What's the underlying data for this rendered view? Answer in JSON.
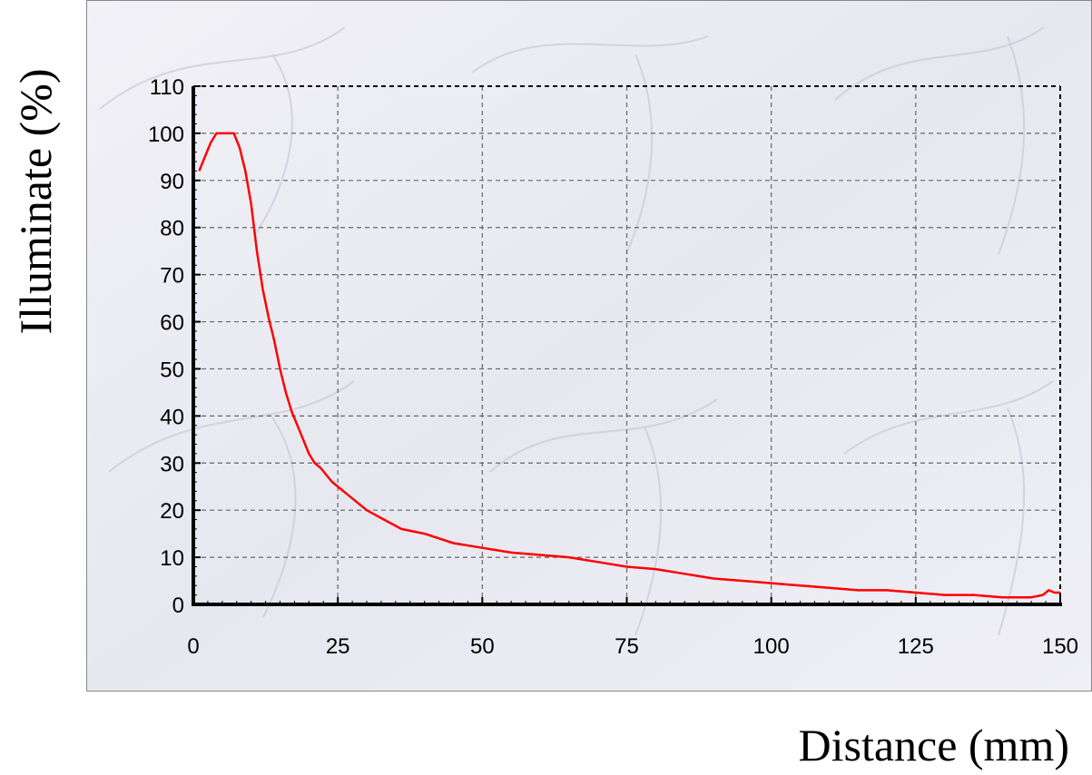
{
  "chart_data": {
    "type": "line",
    "xlabel": "Distance (mm)",
    "ylabel": "Illuminate (%)",
    "xlim": [
      0,
      150
    ],
    "ylim": [
      0,
      110
    ],
    "x_ticks": [
      0,
      25,
      50,
      75,
      100,
      125,
      150
    ],
    "y_ticks": [
      0,
      10,
      20,
      30,
      40,
      50,
      60,
      70,
      80,
      90,
      100,
      110
    ],
    "grid": true,
    "legend": "none",
    "colors": {
      "line": "#ff0000",
      "plot_background": "#e9e9f2",
      "grid": "#666666",
      "axis": "#000000"
    },
    "series": [
      {
        "x": [
          1,
          2,
          3,
          4,
          5,
          6,
          7,
          8,
          9,
          10,
          11,
          12,
          13,
          14,
          15,
          16,
          17,
          18,
          19,
          20,
          21,
          22,
          24,
          26,
          28,
          30,
          33,
          36,
          40,
          45,
          50,
          55,
          60,
          65,
          70,
          75,
          80,
          85,
          90,
          95,
          100,
          105,
          110,
          115,
          120,
          125,
          130,
          135,
          140,
          145,
          147,
          148,
          149,
          150
        ],
        "y": [
          92,
          95,
          98,
          100,
          100,
          100,
          100,
          97,
          92,
          85,
          75,
          67,
          61,
          56,
          50,
          45,
          41,
          38,
          35,
          32,
          30,
          29,
          26,
          24,
          22,
          20,
          18,
          16,
          15,
          13,
          12,
          11,
          10.5,
          10,
          9,
          8,
          7.5,
          6.5,
          5.5,
          5,
          4.5,
          4,
          3.5,
          3,
          3,
          2.5,
          2,
          2,
          1.5,
          1.5,
          2,
          3,
          2.5,
          2.5
        ]
      }
    ]
  }
}
